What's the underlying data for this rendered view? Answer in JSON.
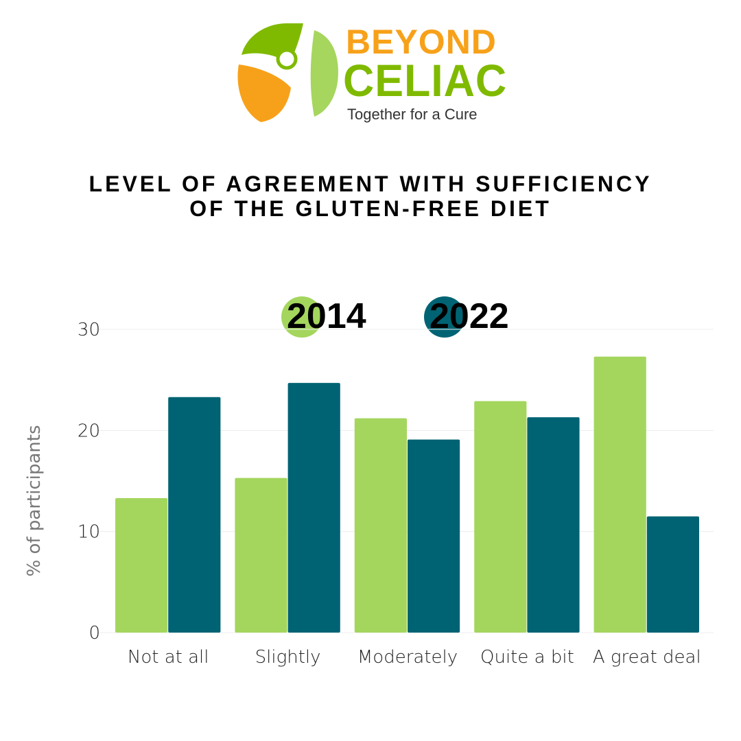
{
  "brand": {
    "name_line1": "BEYOND",
    "name_line2": "CELIAC",
    "tagline": "Together for a Cure",
    "colors": {
      "orange": "#F7A11A",
      "green": "#7FBA00",
      "light_green": "#A6D65E"
    }
  },
  "chart_data": {
    "type": "bar",
    "title": "LEVEL OF AGREEMENT WITH SUFFICIENCY OF THE GLUTEN-FREE DIET",
    "ylabel": "% of participants",
    "xlabel": "",
    "ylim": [
      0,
      30
    ],
    "yticks": [
      0,
      10,
      20,
      30
    ],
    "grid": true,
    "legend_position": "top",
    "categories": [
      "Not at all",
      "Slightly",
      "Moderately",
      "Quite a bit",
      "A great deal"
    ],
    "series": [
      {
        "name": "2014",
        "color": "#A4D65E",
        "values": [
          13.3,
          15.3,
          21.2,
          22.9,
          27.3
        ]
      },
      {
        "name": "2022",
        "color": "#006373",
        "values": [
          23.3,
          24.7,
          19.1,
          21.3,
          11.5
        ]
      }
    ]
  }
}
